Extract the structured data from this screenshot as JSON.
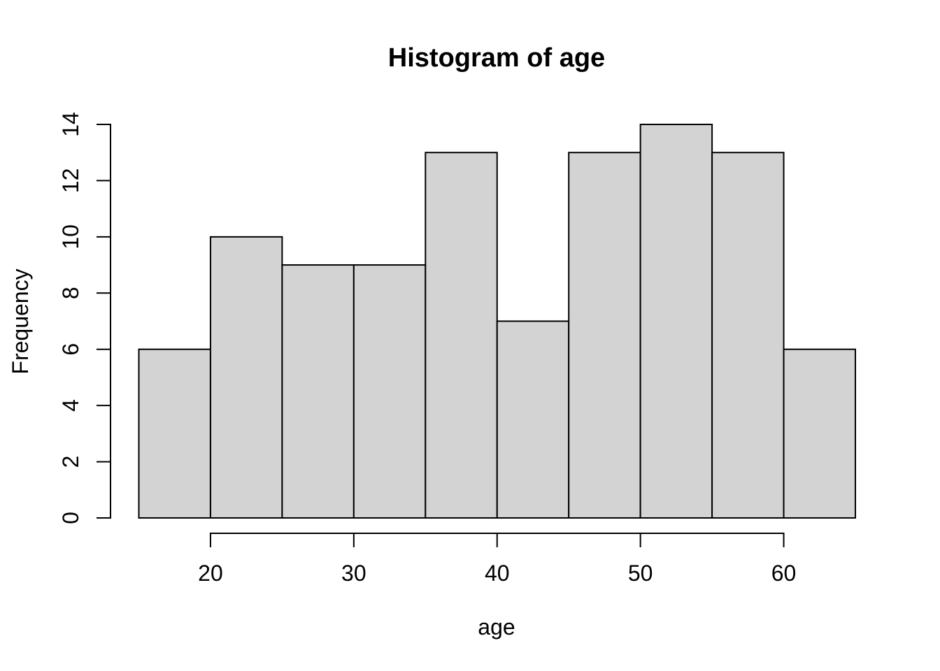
{
  "chart_data": {
    "type": "bar",
    "subtype": "histogram",
    "title": "Histogram of age",
    "xlabel": "age",
    "ylabel": "Frequency",
    "bin_edges": [
      15,
      20,
      25,
      30,
      35,
      40,
      45,
      50,
      55,
      60,
      65
    ],
    "counts": [
      6,
      10,
      9,
      9,
      13,
      7,
      13,
      14,
      13,
      6
    ],
    "x_ticks": [
      20,
      30,
      40,
      50,
      60
    ],
    "y_ticks": [
      0,
      2,
      4,
      6,
      8,
      10,
      12,
      14
    ],
    "xlim": [
      15,
      65
    ],
    "ylim": [
      0,
      14
    ],
    "bar_fill": "#d3d3d3",
    "bar_stroke": "#000000",
    "axis_color": "#000000",
    "text_color": "#000000",
    "grid": false,
    "legend": "none"
  }
}
